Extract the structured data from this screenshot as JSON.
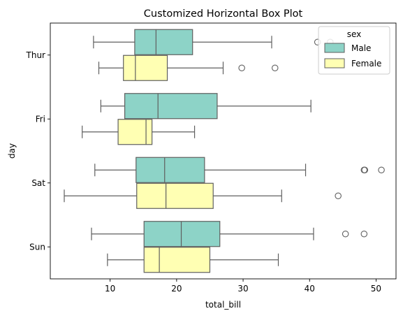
{
  "chart_data": {
    "type": "boxplot",
    "orientation": "horizontal",
    "title": "Customized Horizontal Box Plot",
    "xlabel": "total_bill",
    "ylabel": "day",
    "xlim": [
      1,
      53
    ],
    "xticks": [
      10,
      20,
      30,
      40,
      50
    ],
    "categories": [
      "Thur",
      "Fri",
      "Sat",
      "Sun"
    ],
    "legend": {
      "title": "sex",
      "position": "top-right",
      "entries": [
        "Male",
        "Female"
      ]
    },
    "series": [
      {
        "name": "Male",
        "color": "#8dd3c7",
        "boxes": [
          {
            "category": "Thur",
            "whislo": 7.5,
            "q1": 13.7,
            "med": 16.9,
            "q3": 22.4,
            "whishi": 34.3,
            "fliers": [
              41.2,
              43.1
            ]
          },
          {
            "category": "Fri",
            "whislo": 8.6,
            "q1": 12.2,
            "med": 17.2,
            "q3": 26.1,
            "whishi": 40.2,
            "fliers": []
          },
          {
            "category": "Sat",
            "whislo": 7.7,
            "q1": 13.9,
            "med": 18.2,
            "q3": 24.2,
            "whishi": 39.4,
            "fliers": [
              48.2,
              48.3,
              50.8
            ]
          },
          {
            "category": "Sun",
            "whislo": 7.2,
            "q1": 15.1,
            "med": 20.7,
            "q3": 26.5,
            "whishi": 40.6,
            "fliers": [
              45.4,
              48.2
            ]
          }
        ]
      },
      {
        "name": "Female",
        "color": "#ffffb3",
        "boxes": [
          {
            "category": "Thur",
            "whislo": 8.3,
            "q1": 12.0,
            "med": 13.8,
            "q3": 18.6,
            "whishi": 27.0,
            "fliers": [
              29.8,
              34.8
            ]
          },
          {
            "category": "Fri",
            "whislo": 5.8,
            "q1": 11.2,
            "med": 15.4,
            "q3": 16.3,
            "whishi": 22.7,
            "fliers": []
          },
          {
            "category": "Sat",
            "whislo": 3.1,
            "q1": 14.0,
            "med": 18.4,
            "q3": 25.5,
            "whishi": 35.8,
            "fliers": [
              44.3
            ]
          },
          {
            "category": "Sun",
            "whislo": 9.6,
            "q1": 15.1,
            "med": 17.4,
            "q3": 25.0,
            "whishi": 35.3,
            "fliers": []
          }
        ]
      }
    ]
  }
}
